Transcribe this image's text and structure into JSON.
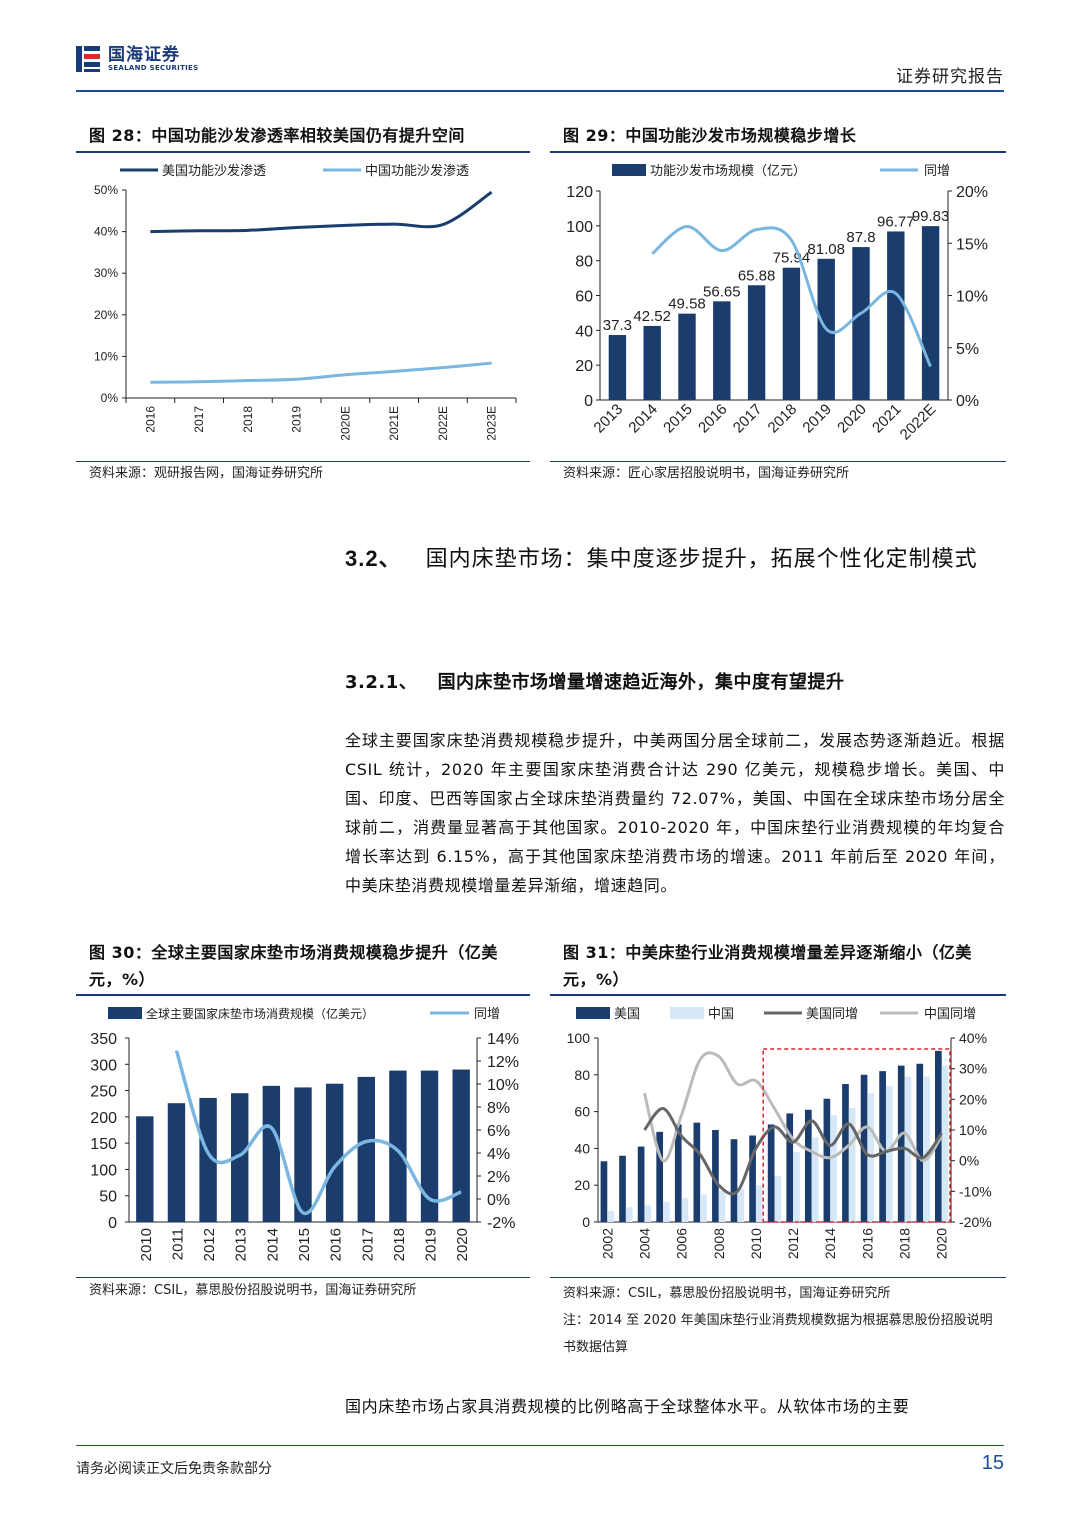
{
  "header": {
    "logo_cn": "国海证券",
    "logo_en": "SEALAND SECURITIES",
    "doc_type": "证券研究报告"
  },
  "fig28": {
    "title": "图 28：中国功能沙发渗透率相较美国仍有提升空间",
    "source": "资料来源：观研报告网，国海证券研究所",
    "chart_data": {
      "type": "line",
      "x": [
        "2016",
        "2017",
        "2018",
        "2019",
        "2020E",
        "2021E",
        "2022E",
        "2023E"
      ],
      "series": [
        {
          "name": "美国功能沙发渗透",
          "values": [
            40.0,
            40.2,
            40.3,
            41.0,
            41.5,
            41.8,
            41.7,
            49.5
          ],
          "color": "#1a3d6d"
        },
        {
          "name": "中国功能沙发渗透",
          "values": [
            3.8,
            3.9,
            4.2,
            4.5,
            5.6,
            6.4,
            7.3,
            8.4
          ],
          "color": "#7ab6e0"
        }
      ],
      "y_ticks": [
        "0%",
        "10%",
        "20%",
        "30%",
        "40%",
        "50%"
      ],
      "ylim": [
        0,
        50
      ]
    }
  },
  "fig29": {
    "title": "图 29：中国功能沙发市场规模稳步增长",
    "source": "资料来源：匠心家居招股说明书，国海证券研究所",
    "chart_data": {
      "type": "bar",
      "categories": [
        "2013",
        "2014",
        "2015",
        "2016",
        "2017",
        "2018",
        "2019",
        "2020",
        "2021",
        "2022E"
      ],
      "series": [
        {
          "name": "功能沙发市场规模（亿元）",
          "values": [
            37.3,
            42.52,
            49.58,
            56.65,
            65.88,
            75.94,
            81.08,
            87.8,
            96.77,
            99.83
          ],
          "color": "#1a3d6d"
        },
        {
          "name": "同增",
          "values": [
            null,
            14.0,
            16.6,
            14.3,
            16.3,
            15.3,
            6.8,
            8.3,
            10.2,
            3.2
          ],
          "color": "#7ab6e0"
        }
      ],
      "data_labels": [
        "37.3",
        "42.52",
        "49.58",
        "56.65",
        "65.88",
        "75.94",
        "81.08",
        "87.8",
        "96.77",
        "99.83"
      ],
      "y_ticks_left": [
        "0",
        "20",
        "40",
        "60",
        "80",
        "100",
        "120"
      ],
      "y_ticks_right": [
        "0%",
        "5%",
        "10%",
        "15%",
        "20%"
      ],
      "ylim_left": [
        0,
        120
      ],
      "ylim_right": [
        0,
        20
      ]
    }
  },
  "section": {
    "h2_num": "3.2、",
    "h2_text": "国内床垫市场：集中度逐步提升，拓展个性化定制模式",
    "h3_num": "3.2.1、",
    "h3_text": "国内床垫市场增量增速趋近海外，集中度有望提升",
    "para": "全球主要国家床垫消费规模稳步提升，中美两国分居全球前二，发展态势逐渐趋近。根据 CSIL 统计，2020 年主要国家床垫消费合计达 290 亿美元，规模稳步增长。美国、中国、印度、巴西等国家占全球床垫消费量约 72.07%，美国、中国在全球床垫市场分居全球前二，消费量显著高于其他国家。2010-2020 年，中国床垫行业消费规模的年均复合增长率达到 6.15%，高于其他国家床垫消费市场的增速。2011 年前后至 2020 年间，中美床垫消费规模增量差异渐缩，增速趋同。",
    "para2": "国内床垫市场占家具消费规模的比例略高于全球整体水平。从软体市场的主要"
  },
  "fig30": {
    "title": "图 30：全球主要国家床垫市场消费规模稳步提升（亿美元，%）",
    "source": "资料来源：CSIL，慕思股份招股说明书，国海证券研究所",
    "chart_data": {
      "type": "bar",
      "categories": [
        "2010",
        "2011",
        "2012",
        "2013",
        "2014",
        "2015",
        "2016",
        "2017",
        "2018",
        "2019",
        "2020"
      ],
      "series": [
        {
          "name": "全球主要国家床垫市场消费规模（亿美元）",
          "values": [
            201,
            226,
            236,
            245,
            259,
            256,
            263,
            276,
            288,
            288,
            290
          ],
          "color": "#1a3d6d"
        },
        {
          "name": "同增",
          "values": [
            null,
            12.9,
            4.0,
            3.8,
            6.2,
            -1.2,
            2.8,
            5.0,
            4.2,
            0.0,
            0.6
          ],
          "color": "#7ab6e0"
        }
      ],
      "y_ticks_left": [
        "0",
        "50",
        "100",
        "150",
        "200",
        "250",
        "300",
        "350"
      ],
      "y_ticks_right": [
        "-2%",
        "0%",
        "2%",
        "4%",
        "6%",
        "8%",
        "10%",
        "12%",
        "14%"
      ],
      "ylim_left": [
        0,
        350
      ],
      "ylim_right": [
        -2,
        14
      ]
    }
  },
  "fig31": {
    "title": "图 31：中美床垫行业消费规模增量差异逐渐缩小（亿美元，%）",
    "source": "资料来源：CSIL，慕思股份招股说明书，国海证券研究所",
    "note": "注：2014 至 2020 年美国床垫行业消费规模数据为根据慕思股份招股说明书数据估算",
    "chart_data": {
      "type": "bar",
      "categories": [
        "2002",
        "2003",
        "2004",
        "2005",
        "2006",
        "2007",
        "2008",
        "2009",
        "2010",
        "2011",
        "2012",
        "2013",
        "2014",
        "2015",
        "2016",
        "2017",
        "2018",
        "2019",
        "2020"
      ],
      "series": [
        {
          "name": "美国",
          "values": [
            33,
            36,
            41,
            49,
            53,
            54,
            50,
            45,
            47,
            53,
            59,
            61,
            67,
            75,
            80,
            82,
            85,
            86,
            93
          ],
          "color": "#1a3d6d"
        },
        {
          "name": "中国",
          "values": [
            6,
            8,
            9,
            11,
            13,
            15,
            17,
            18,
            20,
            25,
            38,
            46,
            58,
            62,
            70,
            74,
            79,
            79,
            85
          ],
          "color": "#d6e8f7"
        },
        {
          "name": "美国同增",
          "values": [
            null,
            null,
            10,
            17,
            8,
            2,
            -8,
            -10,
            4,
            11,
            6,
            13,
            5,
            12,
            2,
            3,
            4,
            1,
            9
          ],
          "color": "#666666"
        },
        {
          "name": "中国同增",
          "values": [
            null,
            null,
            22,
            0,
            15,
            33,
            34,
            25,
            26,
            17,
            7,
            3,
            1,
            5,
            11,
            3,
            9,
            0,
            8
          ],
          "color": "#bbbbbb"
        }
      ],
      "y_ticks_left": [
        "0",
        "20",
        "40",
        "60",
        "80",
        "100"
      ],
      "y_ticks_right": [
        "-20%",
        "-10%",
        "0%",
        "10%",
        "20%",
        "30%",
        "40%"
      ],
      "x_ticks": [
        "2002",
        "2004",
        "2006",
        "2008",
        "2010",
        "2012",
        "2014",
        "2016",
        "2018",
        "2020"
      ],
      "ylim_left": [
        0,
        100
      ],
      "ylim_right": [
        -20,
        40
      ]
    }
  },
  "footer": {
    "disclaimer": "请务必阅读正文后免责条款部分",
    "page": "15"
  }
}
